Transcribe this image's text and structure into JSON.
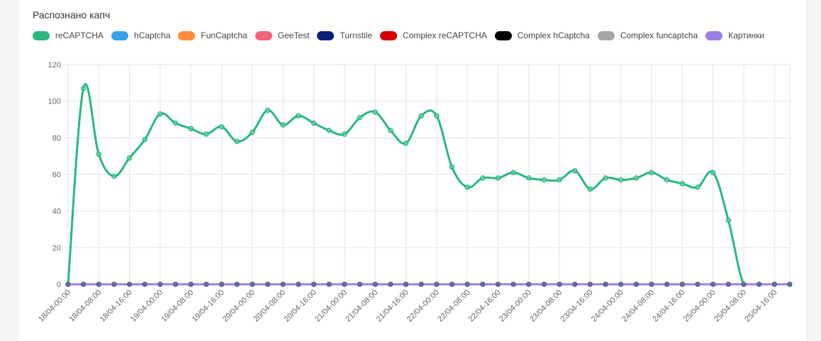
{
  "title": "Распознано капч",
  "legend": [
    {
      "label": "reCAPTCHA",
      "color": "#27b97c"
    },
    {
      "label": "hCaptcha",
      "color": "#36a2eb"
    },
    {
      "label": "FunCaptcha",
      "color": "#ff8c3a"
    },
    {
      "label": "GeeTest",
      "color": "#f2647a"
    },
    {
      "label": "Turnstile",
      "color": "#0d1f7a"
    },
    {
      "label": "Complex reCAPTCHA",
      "color": "#d60000"
    },
    {
      "label": "Complex hCaptcha",
      "color": "#000000"
    },
    {
      "label": "Complex funcaptcha",
      "color": "#a6a6a6"
    },
    {
      "label": "Картинки",
      "color": "#9d7fe8"
    }
  ],
  "chart_data": {
    "type": "line",
    "title": "Распознано капч",
    "ylim": [
      0,
      120
    ],
    "yticks": [
      0,
      20,
      40,
      60,
      80,
      100,
      120
    ],
    "grid": true,
    "legend_position": "top-left",
    "x": [
      "18/04-00:00",
      "18/04-04:00",
      "18/04-08:00",
      "18/04-12:00",
      "18/04-16:00",
      "18/04-20:00",
      "19/04-00:00",
      "19/04-04:00",
      "19/04-08:00",
      "19/04-12:00",
      "19/04-16:00",
      "19/04-20:00",
      "20/04-00:00",
      "20/04-04:00",
      "20/04-08:00",
      "20/04-12:00",
      "20/04-16:00",
      "20/04-20:00",
      "21/04-00:00",
      "21/04-04:00",
      "21/04-08:00",
      "21/04-12:00",
      "21/04-16:00",
      "21/04-20:00",
      "22/04-00:00",
      "22/04-04:00",
      "22/04-08:00",
      "22/04-12:00",
      "22/04-16:00",
      "22/04-20:00",
      "23/04-00:00",
      "23/04-04:00",
      "23/04-08:00",
      "23/04-12:00",
      "23/04-16:00",
      "23/04-20:00",
      "24/04-00:00",
      "24/04-04:00",
      "24/04-08:00",
      "24/04-12:00",
      "24/04-16:00",
      "24/04-20:00",
      "25/04-00:00",
      "25/04-04:00",
      "25/04-08:00",
      "25/04-12:00",
      "25/04-16:00",
      "25/04-20:00"
    ],
    "xtick_labels": [
      "18/04-00:00",
      "18/04-08:00",
      "18/04-16:00",
      "19/04-00:00",
      "19/04-08:00",
      "19/04-16:00",
      "20/04-00:00",
      "20/04-08:00",
      "20/04-16:00",
      "21/04-00:00",
      "21/04-08:00",
      "21/04-16:00",
      "22/04-00:00",
      "22/04-08:00",
      "22/04-16:00",
      "23/04-00:00",
      "23/04-08:00",
      "23/04-16:00",
      "24/04-00:00",
      "24/04-08:00",
      "24/04-16:00",
      "25/04-00:00",
      "25/04-08:00",
      "25/04-16:00"
    ],
    "series": [
      {
        "name": "reCAPTCHA",
        "color": "#27b97c",
        "values": [
          0,
          107,
          71,
          59,
          69,
          79,
          93,
          88,
          85,
          82,
          86,
          78,
          83,
          95,
          87,
          92,
          88,
          84,
          82,
          91,
          94,
          84,
          77,
          92,
          92,
          64,
          53,
          58,
          58,
          61,
          58,
          57,
          57,
          62,
          52,
          58,
          57,
          58,
          61,
          57,
          55,
          53,
          61,
          35,
          0,
          0,
          0,
          0
        ]
      },
      {
        "name": "hCaptcha",
        "color": "#36a2eb",
        "values": [
          0,
          0,
          0,
          0,
          0,
          0,
          0,
          0,
          0,
          0,
          0,
          0,
          0,
          0,
          0,
          0,
          0,
          0,
          0,
          0,
          0,
          0,
          0,
          0,
          0,
          0,
          0,
          0,
          0,
          0,
          0,
          0,
          0,
          0,
          0,
          0,
          0,
          0,
          0,
          0,
          0,
          0,
          0,
          0,
          0,
          0,
          0,
          0
        ]
      },
      {
        "name": "FunCaptcha",
        "color": "#ff8c3a",
        "values": [
          0,
          0,
          0,
          0,
          0,
          0,
          0,
          0,
          0,
          0,
          0,
          0,
          0,
          0,
          0,
          0,
          0,
          0,
          0,
          0,
          0,
          0,
          0,
          0,
          0,
          0,
          0,
          0,
          0,
          0,
          0,
          0,
          0,
          0,
          0,
          0,
          0,
          0,
          0,
          0,
          0,
          0,
          0,
          0,
          0,
          0,
          0,
          0
        ]
      },
      {
        "name": "GeeTest",
        "color": "#f2647a",
        "values": [
          0,
          0,
          0,
          0,
          0,
          0,
          0,
          0,
          0,
          0,
          0,
          0,
          0,
          0,
          0,
          0,
          0,
          0,
          0,
          0,
          0,
          0,
          0,
          0,
          0,
          0,
          0,
          0,
          0,
          0,
          0,
          0,
          0,
          0,
          0,
          0,
          0,
          0,
          0,
          0,
          0,
          0,
          0,
          0,
          0,
          0,
          0,
          0
        ]
      },
      {
        "name": "Turnstile",
        "color": "#0d1f7a",
        "values": [
          0,
          0,
          0,
          0,
          0,
          0,
          0,
          0,
          0,
          0,
          0,
          0,
          0,
          0,
          0,
          0,
          0,
          0,
          0,
          0,
          0,
          0,
          0,
          0,
          0,
          0,
          0,
          0,
          0,
          0,
          0,
          0,
          0,
          0,
          0,
          0,
          0,
          0,
          0,
          0,
          0,
          0,
          0,
          0,
          0,
          0,
          0,
          0
        ]
      },
      {
        "name": "Complex reCAPTCHA",
        "color": "#d60000",
        "values": [
          0,
          0,
          0,
          0,
          0,
          0,
          0,
          0,
          0,
          0,
          0,
          0,
          0,
          0,
          0,
          0,
          0,
          0,
          0,
          0,
          0,
          0,
          0,
          0,
          0,
          0,
          0,
          0,
          0,
          0,
          0,
          0,
          0,
          0,
          0,
          0,
          0,
          0,
          0,
          0,
          0,
          0,
          0,
          0,
          0,
          0,
          0,
          0
        ]
      },
      {
        "name": "Complex hCaptcha",
        "color": "#000000",
        "values": [
          0,
          0,
          0,
          0,
          0,
          0,
          0,
          0,
          0,
          0,
          0,
          0,
          0,
          0,
          0,
          0,
          0,
          0,
          0,
          0,
          0,
          0,
          0,
          0,
          0,
          0,
          0,
          0,
          0,
          0,
          0,
          0,
          0,
          0,
          0,
          0,
          0,
          0,
          0,
          0,
          0,
          0,
          0,
          0,
          0,
          0,
          0,
          0
        ]
      },
      {
        "name": "Complex funcaptcha",
        "color": "#a6a6a6",
        "values": [
          0,
          0,
          0,
          0,
          0,
          0,
          0,
          0,
          0,
          0,
          0,
          0,
          0,
          0,
          0,
          0,
          0,
          0,
          0,
          0,
          0,
          0,
          0,
          0,
          0,
          0,
          0,
          0,
          0,
          0,
          0,
          0,
          0,
          0,
          0,
          0,
          0,
          0,
          0,
          0,
          0,
          0,
          0,
          0,
          0,
          0,
          0,
          0
        ]
      },
      {
        "name": "Картинки",
        "color": "#9d7fe8",
        "values": [
          0,
          0,
          0,
          0,
          0,
          0,
          0,
          0,
          0,
          0,
          0,
          0,
          0,
          0,
          0,
          0,
          0,
          0,
          0,
          0,
          0,
          0,
          0,
          0,
          0,
          0,
          0,
          0,
          0,
          0,
          0,
          0,
          0,
          0,
          0,
          0,
          0,
          0,
          0,
          0,
          0,
          0,
          0,
          0,
          0,
          0,
          0,
          0
        ]
      }
    ]
  }
}
